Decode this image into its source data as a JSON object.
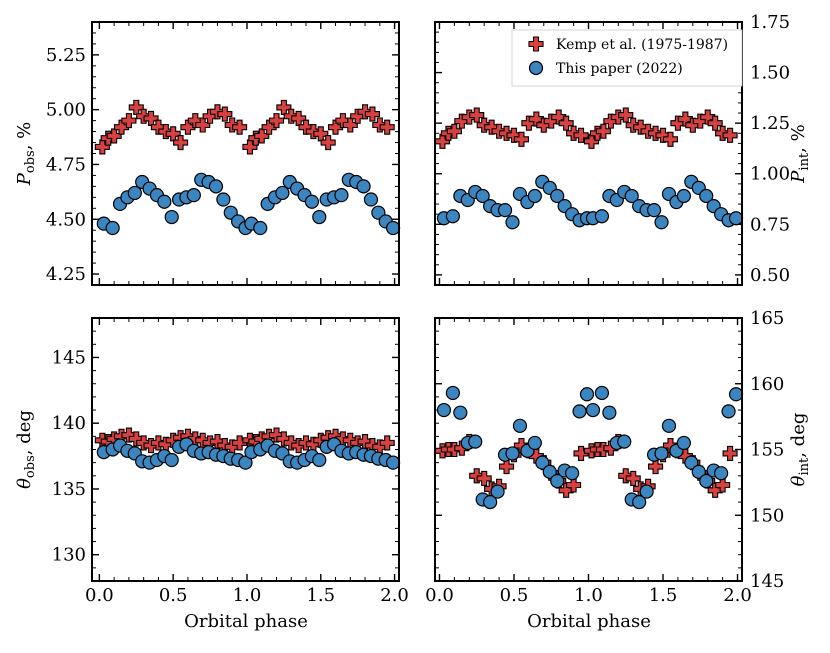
{
  "chart_data": {
    "type": "scatter",
    "legend": {
      "placement": "top-right of upper-right panel",
      "entries": [
        {
          "name": "Kemp et al. (1975-1987)",
          "marker": "plus",
          "color": "#d94040"
        },
        {
          "name": "This paper (2022)",
          "marker": "circle",
          "color": "#3b86c0"
        }
      ]
    },
    "xlabel": "Orbital phase",
    "panels": [
      {
        "id": "p-obs",
        "position": "top-left",
        "ylabel": "P_obs, %",
        "ylabel_main": "P",
        "ylabel_sub": "obs",
        "ylabel_tail": ", %",
        "ylim": [
          4.2,
          5.4
        ],
        "yticks": [
          4.25,
          4.5,
          4.75,
          5.0,
          5.25
        ],
        "ytick_labels": [
          "4.25",
          "4.50",
          "4.75",
          "5.00",
          "5.25"
        ],
        "xlim": [
          -0.05,
          2.03
        ],
        "xticks": [
          0.0,
          0.5,
          1.0,
          1.5,
          2.0
        ],
        "xtick_labels": [
          "",
          "",
          "",
          "",
          ""
        ],
        "yaxis_side": "left",
        "series": [
          {
            "name": "Kemp et al. (1975-1987)",
            "x": [
              0.02,
              0.06,
              0.1,
              0.15,
              0.2,
              0.25,
              0.3,
              0.35,
              0.4,
              0.45,
              0.5,
              0.55,
              0.6,
              0.65,
              0.7,
              0.75,
              0.8,
              0.85,
              0.9,
              0.95,
              1.02,
              1.06,
              1.1,
              1.15,
              1.2,
              1.25,
              1.3,
              1.35,
              1.4,
              1.45,
              1.5,
              1.55,
              1.6,
              1.65,
              1.7,
              1.75,
              1.8,
              1.85,
              1.9,
              1.95
            ],
            "y": [
              4.83,
              4.87,
              4.88,
              4.92,
              4.95,
              5.01,
              4.97,
              4.96,
              4.92,
              4.9,
              4.89,
              4.85,
              4.92,
              4.95,
              4.93,
              4.97,
              4.99,
              4.98,
              4.93,
              4.92,
              4.83,
              4.87,
              4.88,
              4.92,
              4.95,
              5.01,
              4.97,
              4.96,
              4.92,
              4.9,
              4.89,
              4.85,
              4.92,
              4.95,
              4.93,
              4.97,
              4.99,
              4.98,
              4.93,
              4.92
            ]
          },
          {
            "name": "This paper (2022)",
            "x": [
              0.03,
              0.09,
              0.14,
              0.19,
              0.24,
              0.29,
              0.34,
              0.39,
              0.44,
              0.49,
              0.54,
              0.59,
              0.64,
              0.69,
              0.74,
              0.79,
              0.84,
              0.89,
              0.94,
              0.99,
              1.03,
              1.09,
              1.14,
              1.19,
              1.24,
              1.29,
              1.34,
              1.39,
              1.44,
              1.49,
              1.54,
              1.59,
              1.64,
              1.69,
              1.74,
              1.79,
              1.84,
              1.89,
              1.94,
              1.99
            ],
            "y": [
              4.48,
              4.46,
              4.57,
              4.6,
              4.62,
              4.67,
              4.64,
              4.61,
              4.58,
              4.51,
              4.59,
              4.6,
              4.61,
              4.68,
              4.67,
              4.65,
              4.59,
              4.53,
              4.49,
              4.46,
              4.48,
              4.46,
              4.57,
              4.6,
              4.62,
              4.67,
              4.64,
              4.61,
              4.58,
              4.51,
              4.59,
              4.6,
              4.61,
              4.68,
              4.67,
              4.65,
              4.59,
              4.53,
              4.49,
              4.46
            ]
          }
        ]
      },
      {
        "id": "p-int",
        "position": "top-right",
        "ylabel": "P_int, %",
        "ylabel_main": "P",
        "ylabel_sub": "int",
        "ylabel_tail": ", %",
        "ylim": [
          0.45,
          1.75
        ],
        "yticks": [
          0.5,
          0.75,
          1.0,
          1.25,
          1.5,
          1.75
        ],
        "ytick_labels": [
          "0.50",
          "0.75",
          "1.00",
          "1.25",
          "1.50",
          "1.75"
        ],
        "xlim": [
          -0.03,
          2.03
        ],
        "xticks": [
          0.0,
          0.5,
          1.0,
          1.5,
          2.0
        ],
        "xtick_labels": [
          "",
          "",
          "",
          "",
          ""
        ],
        "yaxis_side": "right",
        "series": [
          {
            "name": "Kemp et al. (1975-1987)",
            "x": [
              0.02,
              0.06,
              0.1,
              0.15,
              0.2,
              0.25,
              0.3,
              0.35,
              0.4,
              0.45,
              0.5,
              0.55,
              0.6,
              0.65,
              0.7,
              0.75,
              0.8,
              0.85,
              0.9,
              0.95,
              1.02,
              1.06,
              1.1,
              1.15,
              1.2,
              1.25,
              1.3,
              1.35,
              1.4,
              1.45,
              1.5,
              1.55,
              1.6,
              1.65,
              1.7,
              1.75,
              1.8,
              1.85,
              1.9,
              1.95
            ],
            "y": [
              1.16,
              1.2,
              1.21,
              1.26,
              1.28,
              1.29,
              1.24,
              1.23,
              1.21,
              1.2,
              1.19,
              1.17,
              1.25,
              1.27,
              1.24,
              1.26,
              1.28,
              1.25,
              1.2,
              1.19,
              1.16,
              1.2,
              1.21,
              1.26,
              1.28,
              1.29,
              1.24,
              1.23,
              1.21,
              1.2,
              1.19,
              1.17,
              1.25,
              1.27,
              1.24,
              1.26,
              1.28,
              1.25,
              1.2,
              1.19
            ]
          },
          {
            "name": "This paper (2022)",
            "x": [
              0.03,
              0.09,
              0.14,
              0.19,
              0.24,
              0.29,
              0.34,
              0.39,
              0.44,
              0.49,
              0.54,
              0.59,
              0.64,
              0.69,
              0.74,
              0.79,
              0.84,
              0.89,
              0.94,
              0.99,
              1.03,
              1.09,
              1.14,
              1.19,
              1.24,
              1.29,
              1.34,
              1.39,
              1.44,
              1.49,
              1.54,
              1.59,
              1.64,
              1.69,
              1.74,
              1.79,
              1.84,
              1.89,
              1.94,
              1.99
            ],
            "y": [
              0.78,
              0.79,
              0.89,
              0.87,
              0.91,
              0.89,
              0.84,
              0.82,
              0.82,
              0.76,
              0.9,
              0.86,
              0.89,
              0.96,
              0.93,
              0.89,
              0.84,
              0.8,
              0.77,
              0.78,
              0.78,
              0.79,
              0.89,
              0.87,
              0.91,
              0.89,
              0.84,
              0.82,
              0.82,
              0.76,
              0.9,
              0.86,
              0.89,
              0.96,
              0.93,
              0.89,
              0.84,
              0.8,
              0.77,
              0.78
            ]
          }
        ]
      },
      {
        "id": "theta-obs",
        "position": "bottom-left",
        "ylabel": "theta_obs, deg",
        "ylabel_main": "θ",
        "ylabel_sub": "obs",
        "ylabel_tail": ", deg",
        "ylim": [
          128,
          148
        ],
        "yticks": [
          130,
          135,
          140,
          145
        ],
        "ytick_labels": [
          "130",
          "135",
          "140",
          "145"
        ],
        "xlim": [
          -0.05,
          2.03
        ],
        "xticks": [
          0.0,
          0.5,
          1.0,
          1.5,
          2.0
        ],
        "xtick_labels": [
          "0.0",
          "0.5",
          "1.0",
          "1.5",
          "2.0"
        ],
        "yaxis_side": "left",
        "series": [
          {
            "name": "Kemp et al. (1975-1987)",
            "x": [
              0.02,
              0.06,
              0.1,
              0.15,
              0.2,
              0.25,
              0.3,
              0.35,
              0.4,
              0.45,
              0.5,
              0.55,
              0.6,
              0.65,
              0.7,
              0.75,
              0.8,
              0.85,
              0.9,
              0.95,
              1.02,
              1.06,
              1.1,
              1.15,
              1.2,
              1.25,
              1.3,
              1.35,
              1.4,
              1.45,
              1.5,
              1.55,
              1.6,
              1.65,
              1.7,
              1.75,
              1.8,
              1.85,
              1.9,
              1.95
            ],
            "y": [
              138.7,
              138.6,
              138.8,
              139.0,
              139.1,
              138.8,
              138.5,
              138.3,
              138.5,
              138.4,
              138.7,
              138.9,
              139.0,
              138.8,
              138.7,
              138.5,
              138.6,
              138.3,
              138.2,
              138.5,
              138.7,
              138.6,
              138.8,
              139.0,
              139.1,
              138.8,
              138.5,
              138.3,
              138.5,
              138.4,
              138.7,
              138.9,
              139.0,
              138.8,
              138.7,
              138.5,
              138.6,
              138.3,
              138.2,
              138.5
            ]
          },
          {
            "name": "This paper (2022)",
            "x": [
              0.03,
              0.09,
              0.14,
              0.19,
              0.24,
              0.29,
              0.34,
              0.39,
              0.44,
              0.49,
              0.54,
              0.59,
              0.64,
              0.69,
              0.74,
              0.79,
              0.84,
              0.89,
              0.94,
              0.99,
              1.03,
              1.09,
              1.14,
              1.19,
              1.24,
              1.29,
              1.34,
              1.39,
              1.44,
              1.49,
              1.54,
              1.59,
              1.64,
              1.69,
              1.74,
              1.79,
              1.84,
              1.89,
              1.94,
              1.99
            ],
            "y": [
              137.8,
              138.0,
              138.3,
              137.9,
              137.7,
              137.1,
              137.0,
              137.2,
              137.5,
              137.2,
              138.2,
              138.4,
              137.9,
              137.7,
              137.8,
              137.6,
              137.5,
              137.3,
              137.2,
              137.0,
              137.8,
              138.0,
              138.3,
              137.9,
              137.7,
              137.1,
              137.0,
              137.2,
              137.5,
              137.2,
              138.2,
              138.4,
              137.9,
              137.7,
              137.8,
              137.6,
              137.5,
              137.3,
              137.2,
              137.0
            ]
          }
        ]
      },
      {
        "id": "theta-int",
        "position": "bottom-right",
        "ylabel": "theta_int, deg",
        "ylabel_main": "θ",
        "ylabel_sub": "int",
        "ylabel_tail": ", deg",
        "ylim": [
          145,
          165
        ],
        "yticks": [
          145,
          150,
          155,
          160,
          165
        ],
        "ytick_labels": [
          "145",
          "150",
          "155",
          "160",
          "165"
        ],
        "xlim": [
          -0.03,
          2.03
        ],
        "xticks": [
          0.0,
          0.5,
          1.0,
          1.5,
          2.0
        ],
        "xtick_labels": [
          "0.0",
          "0.5",
          "1.0",
          "1.5",
          "2.0"
        ],
        "yaxis_side": "right",
        "series": [
          {
            "name": "Kemp et al. (1975-1987)",
            "x": [
              0.02,
              0.06,
              0.1,
              0.15,
              0.2,
              0.25,
              0.3,
              0.35,
              0.4,
              0.45,
              0.5,
              0.55,
              0.6,
              0.65,
              0.7,
              0.75,
              0.8,
              0.85,
              0.9,
              0.95,
              1.02,
              1.06,
              1.1,
              1.15,
              1.2,
              1.25,
              1.3,
              1.35,
              1.4,
              1.45,
              1.5,
              1.55,
              1.6,
              1.65,
              1.7,
              1.75,
              1.8,
              1.85,
              1.9,
              1.95
            ],
            "y": [
              154.9,
              155.0,
              155.0,
              155.1,
              155.6,
              153.0,
              152.8,
              152.0,
              152.2,
              153.7,
              154.6,
              155.3,
              154.9,
              154.5,
              154.0,
              153.2,
              152.6,
              151.9,
              152.3,
              154.7,
              154.9,
              155.0,
              155.0,
              155.1,
              155.6,
              153.0,
              152.8,
              152.0,
              152.2,
              153.7,
              154.6,
              155.3,
              154.9,
              154.5,
              154.0,
              153.2,
              152.6,
              151.9,
              152.3,
              154.7
            ]
          },
          {
            "name": "This paper (2022)",
            "x": [
              0.03,
              0.09,
              0.14,
              0.19,
              0.24,
              0.29,
              0.34,
              0.39,
              0.44,
              0.49,
              0.54,
              0.59,
              0.64,
              0.69,
              0.74,
              0.79,
              0.84,
              0.89,
              0.94,
              0.99,
              1.03,
              1.09,
              1.14,
              1.19,
              1.24,
              1.29,
              1.34,
              1.39,
              1.44,
              1.49,
              1.54,
              1.59,
              1.64,
              1.69,
              1.74,
              1.79,
              1.84,
              1.89,
              1.94,
              1.99
            ],
            "y": [
              158.0,
              159.3,
              157.8,
              155.5,
              155.6,
              151.2,
              151.0,
              151.8,
              154.6,
              154.7,
              156.8,
              154.9,
              155.5,
              154.0,
              153.3,
              152.6,
              153.4,
              153.2,
              157.9,
              159.2,
              158.0,
              159.3,
              157.8,
              155.5,
              155.6,
              151.2,
              151.0,
              151.8,
              154.6,
              154.7,
              156.8,
              154.9,
              155.5,
              154.0,
              153.3,
              152.6,
              153.4,
              153.2,
              157.9,
              159.2
            ]
          }
        ]
      }
    ]
  }
}
